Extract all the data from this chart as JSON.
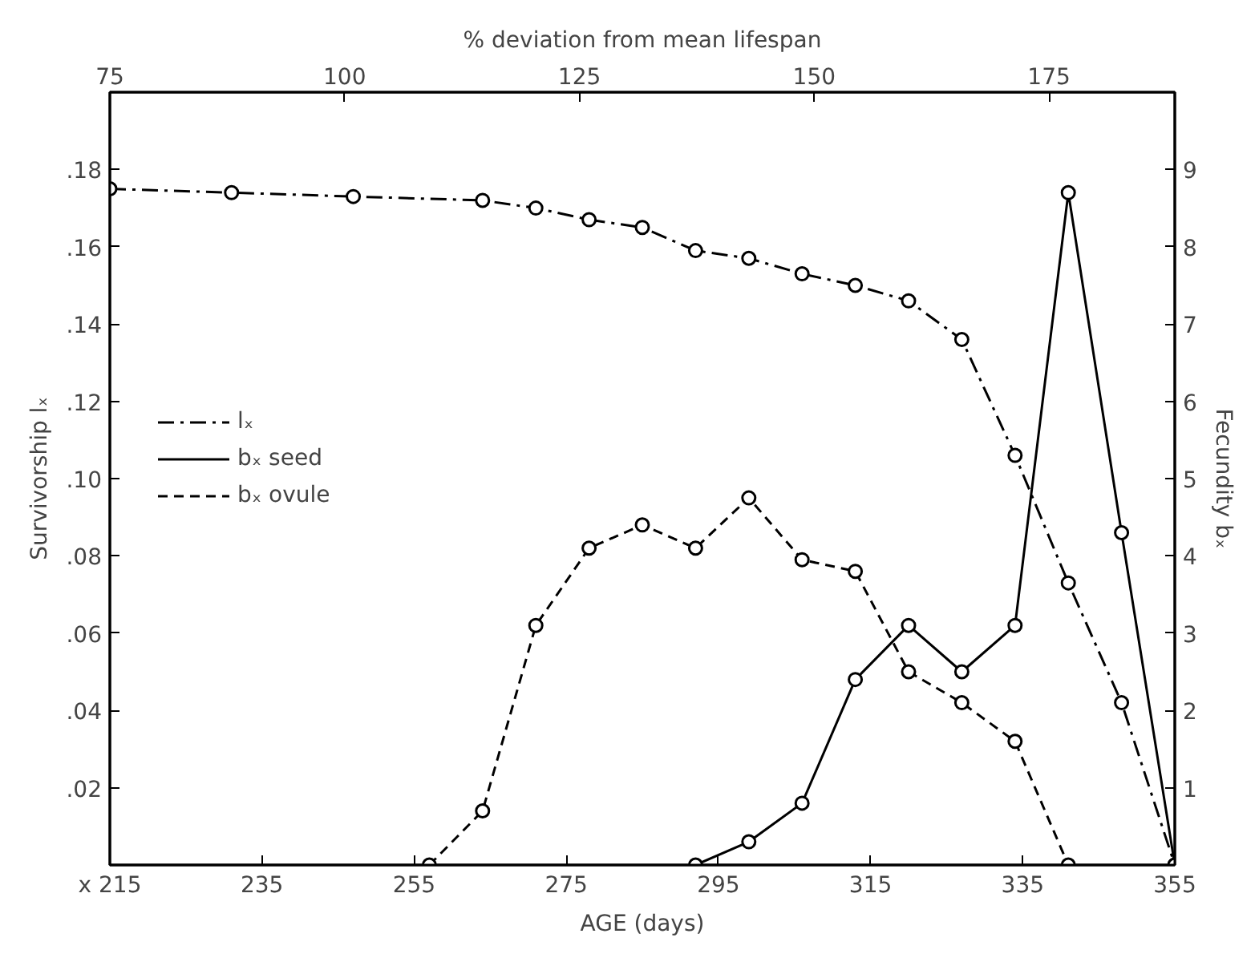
{
  "chart_data": {
    "type": "line",
    "xlabel": "AGE (days)",
    "ylabel": "Survivorship lₓ",
    "y2label": "Fecundity bₓ",
    "x2label": "% deviation from mean lifespan",
    "xlim": [
      215,
      355
    ],
    "xticks": [
      {
        "value": 215,
        "label": "x 215"
      },
      235,
      255,
      275,
      295,
      315,
      335,
      355
    ],
    "ylim": [
      0,
      0.2
    ],
    "yticks": [
      {
        "value": 0,
        "label": null
      },
      {
        "value": 0.02,
        "label": ".02"
      },
      {
        "value": 0.04,
        "label": ".04"
      },
      {
        "value": 0.06,
        "label": ".06"
      },
      {
        "value": 0.08,
        "label": ".08"
      },
      {
        "value": 0.1,
        "label": ".10"
      },
      {
        "value": 0.12,
        "label": ".12"
      },
      {
        "value": 0.14,
        "label": ".14"
      },
      {
        "value": 0.16,
        "label": ".16"
      },
      {
        "value": 0.18,
        "label": ".18"
      }
    ],
    "y2lim": [
      0,
      10
    ],
    "y2ticks": [
      {
        "value": 0,
        "label": null
      },
      1,
      2,
      3,
      4,
      5,
      6,
      7,
      8,
      9
    ],
    "x2lim": [
      75,
      188.4
    ],
    "x2ticks": [
      75,
      100,
      125,
      150,
      175
    ],
    "grid": false,
    "legend": "left",
    "marker": "circle",
    "series": [
      {
        "name": "lₓ",
        "color": "#000000",
        "line_style": "dashdot",
        "x": [
          215,
          231,
          247,
          264,
          271,
          278,
          285,
          292,
          299,
          306,
          313,
          320,
          327,
          334,
          341,
          348,
          355
        ],
        "values": [
          0.175,
          0.174,
          0.173,
          0.172,
          0.17,
          0.167,
          0.165,
          0.159,
          0.157,
          0.153,
          0.15,
          0.146,
          0.136,
          0.106,
          0.073,
          0.042,
          0
        ]
      },
      {
        "name": "bₓ seed",
        "color": "#000000",
        "line_style": "solid",
        "axis": "y2",
        "x": [
          292,
          299,
          306,
          313,
          320,
          327,
          334,
          341,
          348,
          355
        ],
        "values": [
          0,
          0.3,
          0.8,
          2.4,
          3.1,
          2.5,
          3.1,
          8.7,
          4.3,
          0
        ]
      },
      {
        "name": "bₓ ovule",
        "color": "#000000",
        "line_style": "dashed",
        "axis": "y2",
        "x": [
          257,
          264,
          271,
          278,
          285,
          292,
          299,
          306,
          313,
          320,
          327,
          334,
          341
        ],
        "values": [
          0,
          0.7,
          3.1,
          4.1,
          4.4,
          4.1,
          4.75,
          3.95,
          3.8,
          2.5,
          2.1,
          1.6,
          0
        ]
      }
    ]
  }
}
